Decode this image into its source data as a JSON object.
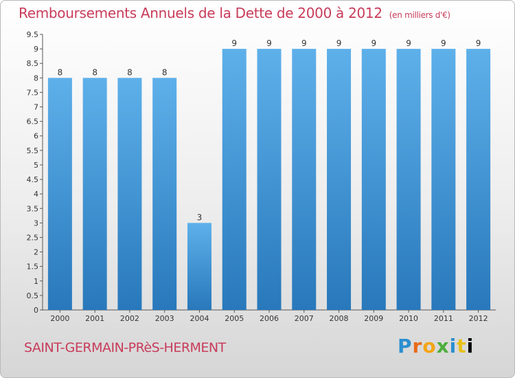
{
  "header": {
    "title": "Remboursements Annuels de la Dette de 2000 à 2012",
    "unit": "(en milliers d'€)"
  },
  "footer": {
    "town": "SAINT-GERMAIN-PRèS-HERMENT",
    "logo": [
      "P",
      "r",
      "o",
      "x",
      "i",
      "t",
      "i"
    ]
  },
  "chart_data": {
    "type": "bar",
    "categories": [
      "2000",
      "2001",
      "2002",
      "2003",
      "2004",
      "2005",
      "2006",
      "2007",
      "2008",
      "2009",
      "2010",
      "2011",
      "2012"
    ],
    "values": [
      8,
      8,
      8,
      8,
      3,
      9,
      9,
      9,
      9,
      9,
      9,
      9,
      9
    ],
    "data_labels": [
      "8",
      "8",
      "8",
      "8",
      "3",
      "9",
      "9",
      "9",
      "9",
      "9",
      "9",
      "9",
      "9"
    ],
    "title": "Remboursements Annuels de la Dette de 2000 à 2012",
    "ylim": [
      0,
      9.5
    ],
    "yticks": [
      0,
      0.5,
      1,
      1.5,
      2,
      2.5,
      3,
      3.5,
      4,
      4.5,
      5,
      5.5,
      6,
      6.5,
      7,
      7.5,
      8,
      8.5,
      9,
      9.5
    ],
    "ytick_labels": [
      "0",
      "0.5",
      "1",
      "1.5",
      "2",
      "2.5",
      "3",
      "3.5",
      "4",
      "4.5",
      "5",
      "5.5",
      "6",
      "6.5",
      "7",
      "7.5",
      "8",
      "8.5",
      "9",
      "9.5"
    ],
    "grid": false,
    "colors": {
      "bar_top": "#5eb0ea",
      "bar_bottom": "#2878bb",
      "axis": "#555555",
      "text": "#c83c5a"
    }
  }
}
